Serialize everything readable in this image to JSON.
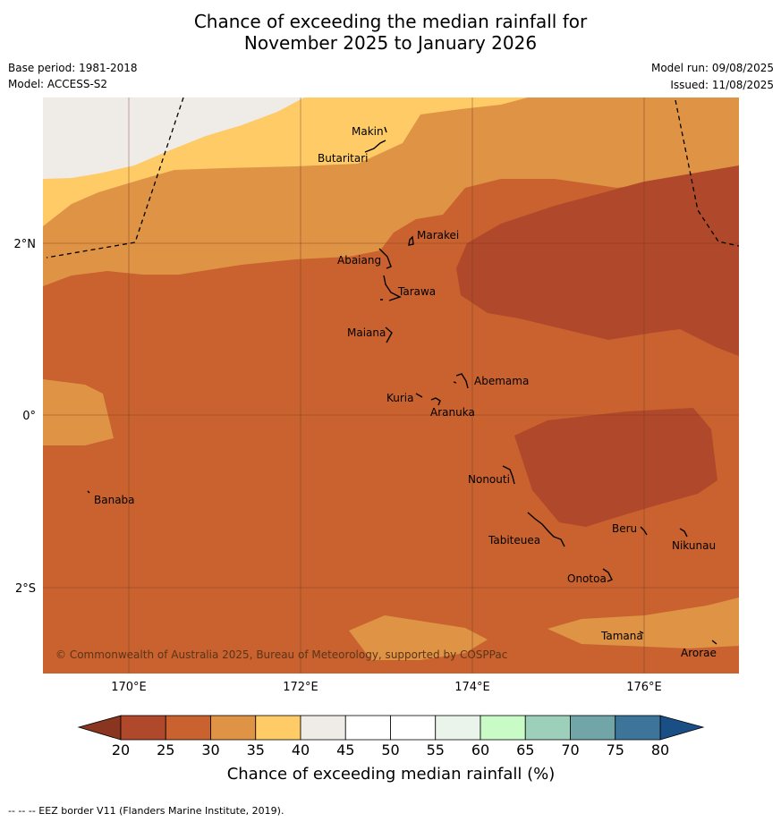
{
  "header": {
    "title_line1": "Chance of exceeding the median rainfall for",
    "title_line2": "November 2025 to January 2026",
    "base_period": "Base period: 1981-2018",
    "model": "Model: ACCESS-S2",
    "model_run": "Model run: 09/08/2025",
    "issued": "Issued: 11/08/2025"
  },
  "axes": {
    "x_ticks": [
      "170°E",
      "172°E",
      "174°E",
      "176°E"
    ],
    "y_ticks": [
      "2°N",
      "0°",
      "2°S"
    ]
  },
  "places": [
    "Makin",
    "Butaritari",
    "Marakei",
    "Abaiang",
    "Tarawa",
    "Maiana",
    "Abemama",
    "Kuria",
    "Aranuka",
    "Banaba",
    "Nonouti",
    "Beru",
    "Nikunau",
    "Tabiteuea",
    "Onotoa",
    "Tamana",
    "Arorae"
  ],
  "copyright": "© Commonwealth of Australia 2025, Bureau of Meteorology, supported by COSPPac",
  "colorbar": {
    "title": "Chance of exceeding median rainfall (%)",
    "ticks": [
      "20",
      "25",
      "30",
      "35",
      "40",
      "45",
      "50",
      "55",
      "60",
      "65",
      "70",
      "75",
      "80"
    ],
    "colors": [
      "#b0482b",
      "#c9622f",
      "#df9345",
      "#fecb66",
      "#efebe7",
      "#ffffff",
      "#ffffff",
      "#eaf4ea",
      "#c9fbc7",
      "#9dd0ba",
      "#72a5a7",
      "#3c7599"
    ],
    "low_arrow_color": "#8a3520",
    "high_arrow_color": "#1a4f85"
  },
  "footer": "--  --  -- EEZ border V11 (Flanders Marine Institute, 2019)."
}
